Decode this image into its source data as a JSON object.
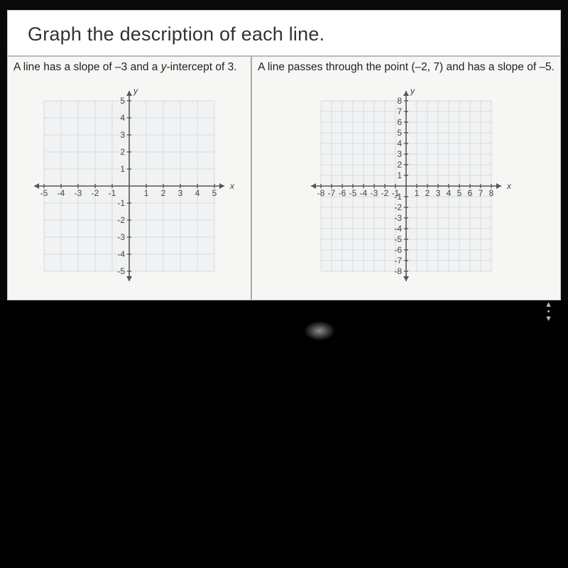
{
  "title": "Graph the description of each line.",
  "problems": [
    {
      "desc_prefix": "A line has a slope of –3 and a ",
      "desc_italic": "y",
      "desc_suffix": "-intercept of 3.",
      "graph": {
        "size": 300,
        "range": 5,
        "tick_step": 1,
        "grid_color": "#d8dadc",
        "axis_color": "#555",
        "bg": "#f6f6f4",
        "grid_bg": "#f1f2f3",
        "x_label": "x",
        "y_label": "y",
        "label_pos": true,
        "y_tick_labels_all": true
      }
    },
    {
      "desc_plain": "A line passes through the point (–2, 7) and has a slope of –5.",
      "graph": {
        "size": 300,
        "range": 8,
        "tick_step": 1,
        "grid_color": "#d8dadc",
        "axis_color": "#555",
        "bg": "#f6f6f4",
        "grid_bg": "#f1f2f3",
        "x_label": "x",
        "y_label": "y",
        "label_pos": true,
        "y_tick_labels_all": true
      }
    }
  ],
  "style": {
    "page_bg": "#fefefe",
    "title_fontsize": 27,
    "desc_fontsize": 15.5
  }
}
